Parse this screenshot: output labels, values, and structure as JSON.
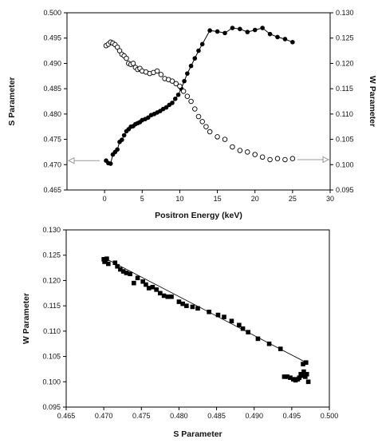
{
  "chart_data": [
    {
      "type": "scatter",
      "xlabel": "Positron Energy (keV)",
      "ylabel": "S Parameter",
      "y2label": "W Parameter",
      "xlim": [
        -5,
        30
      ],
      "ylim": [
        0.465,
        0.5
      ],
      "y2lim": [
        0.095,
        0.13
      ],
      "xticks": [
        0,
        5,
        10,
        15,
        20,
        25,
        30
      ],
      "xtick_labels": [
        "0",
        "5",
        "10",
        "15",
        "20",
        "25",
        "30"
      ],
      "yticks": [
        0.465,
        0.47,
        0.475,
        0.48,
        0.485,
        0.49,
        0.495,
        0.5
      ],
      "ytick_labels": [
        "0.465",
        "0.470",
        "0.475",
        "0.480",
        "0.485",
        "0.490",
        "0.495",
        "0.500"
      ],
      "y2ticks": [
        0.095,
        0.1,
        0.105,
        0.11,
        0.115,
        0.12,
        0.125,
        0.13
      ],
      "y2tick_labels": [
        "0.095",
        "0.100",
        "0.105",
        "0.110",
        "0.115",
        "0.120",
        "0.125",
        "0.130"
      ],
      "grid": false,
      "arrows": [
        {
          "series": "S Parameter",
          "points_to": "left-axis",
          "at_y": 0.4708
        },
        {
          "series": "W Parameter",
          "points_to": "right-axis",
          "at_y": 0.101
        }
      ],
      "series": [
        {
          "marker": "filled-circle",
          "axis": "left",
          "fit_line": true,
          "x": [
            0.2,
            0.5,
            0.8,
            1.1,
            1.4,
            1.7,
            2.0,
            2.3,
            2.6,
            2.9,
            3.2,
            3.5,
            3.8,
            4.1,
            4.4,
            4.7,
            5.0,
            5.4,
            5.8,
            6.2,
            6.6,
            7.0,
            7.4,
            7.8,
            8.2,
            8.6,
            9.0,
            9.4,
            9.8,
            10.2,
            10.6,
            11.0,
            11.5,
            12.0,
            12.5,
            13.0,
            14.0,
            15.0,
            16.0,
            17.0,
            18.0,
            19.0,
            20.0,
            21.0,
            22.0,
            23.0,
            24.0,
            25.0
          ],
          "y": [
            0.4708,
            0.4703,
            0.4702,
            0.472,
            0.4725,
            0.473,
            0.4745,
            0.4749,
            0.4758,
            0.4766,
            0.477,
            0.4775,
            0.4776,
            0.478,
            0.4782,
            0.4784,
            0.4788,
            0.479,
            0.4793,
            0.4798,
            0.48,
            0.4803,
            0.4806,
            0.481,
            0.4813,
            0.4818,
            0.4822,
            0.483,
            0.4838,
            0.485,
            0.4865,
            0.488,
            0.4895,
            0.491,
            0.4925,
            0.4938,
            0.4965,
            0.4963,
            0.496,
            0.497,
            0.4968,
            0.4962,
            0.4966,
            0.497,
            0.4958,
            0.4952,
            0.4948,
            0.4942
          ]
        },
        {
          "marker": "open-circle",
          "axis": "right",
          "x": [
            0.2,
            0.5,
            0.8,
            1.1,
            1.4,
            1.7,
            2.0,
            2.3,
            2.6,
            2.9,
            3.2,
            3.5,
            3.8,
            4.1,
            4.4,
            4.7,
            5.0,
            5.5,
            6.0,
            6.5,
            7.0,
            7.5,
            8.0,
            8.5,
            9.0,
            9.5,
            10.0,
            10.5,
            11.0,
            11.5,
            12.0,
            12.5,
            13.0,
            13.5,
            14.0,
            15.0,
            16.0,
            17.0,
            18.0,
            19.0,
            20.0,
            21.0,
            22.0,
            23.0,
            24.0,
            25.0
          ],
          "y": [
            0.1235,
            0.1238,
            0.1242,
            0.124,
            0.1237,
            0.1232,
            0.1225,
            0.1218,
            0.1215,
            0.121,
            0.12,
            0.1198,
            0.12,
            0.1192,
            0.1188,
            0.119,
            0.1185,
            0.1183,
            0.118,
            0.1182,
            0.1185,
            0.1178,
            0.117,
            0.1168,
            0.1165,
            0.116,
            0.1155,
            0.1145,
            0.1135,
            0.1125,
            0.111,
            0.1095,
            0.1085,
            0.1075,
            0.1065,
            0.1055,
            0.105,
            0.1035,
            0.1028,
            0.1025,
            0.102,
            0.1015,
            0.101,
            0.1012,
            0.101,
            0.1012
          ]
        }
      ]
    },
    {
      "type": "scatter",
      "xlabel": "S  Parameter",
      "ylabel": "W Parameter",
      "xlim": [
        0.465,
        0.5
      ],
      "ylim": [
        0.095,
        0.13
      ],
      "xticks": [
        0.465,
        0.47,
        0.475,
        0.48,
        0.485,
        0.49,
        0.495,
        0.5
      ],
      "xtick_labels": [
        "0.465",
        "0.470",
        "0.475",
        "0.480",
        "0.485",
        "0.490",
        "0.495",
        "0.500"
      ],
      "yticks": [
        0.095,
        0.1,
        0.105,
        0.11,
        0.115,
        0.12,
        0.125,
        0.13
      ],
      "ytick_labels": [
        "0.095",
        "0.100",
        "0.105",
        "0.110",
        "0.115",
        "0.120",
        "0.125",
        "0.130"
      ],
      "grid": false,
      "fit_line": {
        "x": [
          0.4703,
          0.4968
        ],
        "y": [
          0.1243,
          0.1039
        ]
      },
      "series": [
        {
          "marker": "filled-square",
          "x": [
            0.47,
            0.4702,
            0.4704,
            0.4701,
            0.4706,
            0.4715,
            0.4718,
            0.4722,
            0.4726,
            0.473,
            0.4735,
            0.474,
            0.4745,
            0.4752,
            0.4756,
            0.476,
            0.4765,
            0.477,
            0.4775,
            0.478,
            0.4785,
            0.479,
            0.48,
            0.4805,
            0.481,
            0.4818,
            0.4825,
            0.484,
            0.4852,
            0.486,
            0.487,
            0.488,
            0.4885,
            0.4892,
            0.4905,
            0.492,
            0.4935,
            0.494,
            0.4944,
            0.4948,
            0.4952,
            0.4955,
            0.4958,
            0.496,
            0.4962,
            0.4964,
            0.4966,
            0.4968,
            0.497,
            0.4972,
            0.4965,
            0.4969
          ],
          "y": [
            0.1242,
            0.124,
            0.1243,
            0.1237,
            0.1233,
            0.1235,
            0.1228,
            0.1222,
            0.1218,
            0.1215,
            0.1213,
            0.1195,
            0.1205,
            0.1198,
            0.1192,
            0.1185,
            0.1187,
            0.1182,
            0.1175,
            0.117,
            0.1168,
            0.1168,
            0.1158,
            0.1154,
            0.115,
            0.1148,
            0.1145,
            0.1138,
            0.1132,
            0.1128,
            0.112,
            0.1112,
            0.1105,
            0.1098,
            0.1085,
            0.1075,
            0.1065,
            0.101,
            0.101,
            0.1008,
            0.1005,
            0.1003,
            0.1005,
            0.1008,
            0.1015,
            0.1012,
            0.102,
            0.101,
            0.1015,
            0.1,
            0.1035,
            0.1038
          ]
        }
      ]
    }
  ]
}
